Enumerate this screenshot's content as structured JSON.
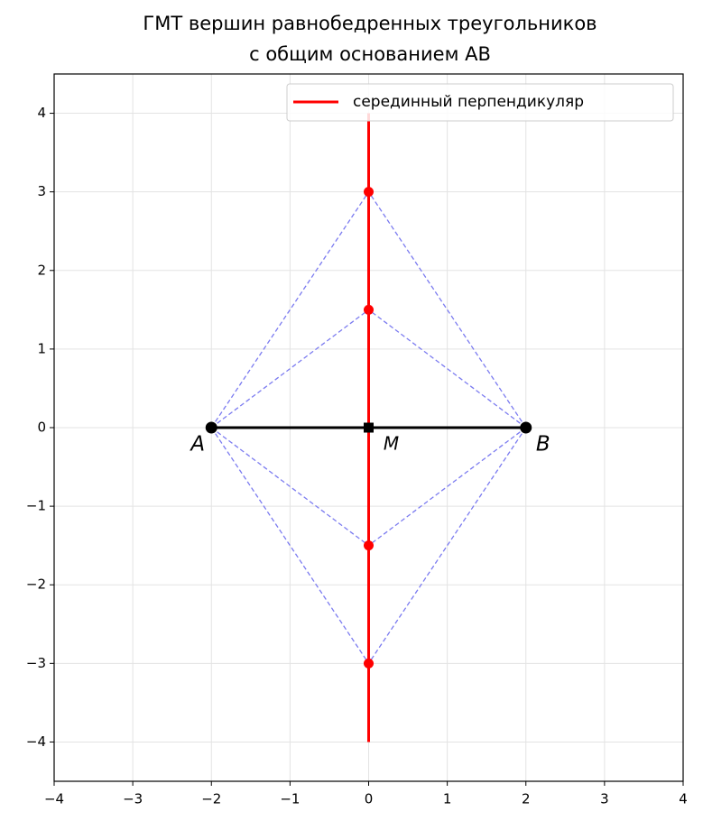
{
  "chart_data": {
    "type": "line",
    "title": [
      "ГМТ вершин равнобедренных треугольников",
      "с общим основанием AB"
    ],
    "series": [
      {
        "name": "серединный перпендикуляр",
        "color": "#ff0000",
        "x": [
          0,
          0
        ],
        "values": [
          -4,
          4
        ]
      }
    ],
    "points": {
      "labels": [
        "A",
        "B",
        "M"
      ],
      "x": [
        -2,
        2,
        0
      ],
      "values": [
        0,
        0,
        0
      ],
      "markers": [
        "circle",
        "circle",
        "square"
      ],
      "color": "#000000"
    },
    "apexes": {
      "x": [
        0,
        0,
        0,
        0
      ],
      "values": [
        3,
        1.5,
        -1.5,
        -3
      ],
      "color": "#ff0000",
      "edge_color": "#7b7bf0"
    },
    "xlim": [
      -4,
      4
    ],
    "ylim": [
      -4.5,
      4.5
    ],
    "xticks": [
      {
        "value": -4,
        "label": "−4"
      },
      {
        "value": -3,
        "label": "−3"
      },
      {
        "value": -2,
        "label": "−2"
      },
      {
        "value": -1,
        "label": "−1"
      },
      0,
      1,
      2,
      3,
      4
    ],
    "yticks": [
      {
        "value": -4,
        "label": "−4"
      },
      {
        "value": -3,
        "label": "−3"
      },
      {
        "value": -2,
        "label": "−2"
      },
      {
        "value": -1,
        "label": "−1"
      },
      0,
      1,
      2,
      3,
      4
    ],
    "grid": true,
    "legend": "upper right"
  }
}
